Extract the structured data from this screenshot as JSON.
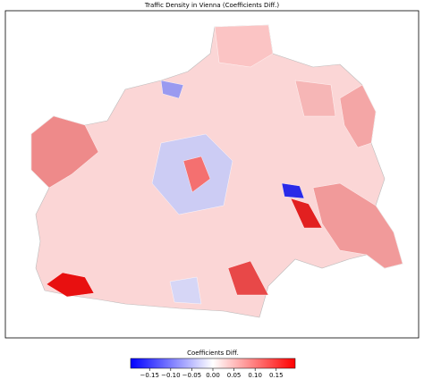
{
  "chart_data": {
    "type": "choropleth",
    "title": "Traffic Density in Vienna (Coefficients Diff.)",
    "colorbar_label": "Coefficients Diff.",
    "colormap": [
      "#0000ff",
      "#ffffff",
      "#ff0000"
    ],
    "clim": [
      -0.195,
      0.195
    ],
    "cticks": [
      {
        "value": -0.15,
        "label": "−0.15"
      },
      {
        "value": -0.1,
        "label": "−0.10"
      },
      {
        "value": -0.05,
        "label": "−0.05"
      },
      {
        "value": 0,
        "label": "0.00"
      },
      0.05,
      {
        "value": 0.1,
        "label": "0.10"
      },
      0.15
    ]
  }
}
